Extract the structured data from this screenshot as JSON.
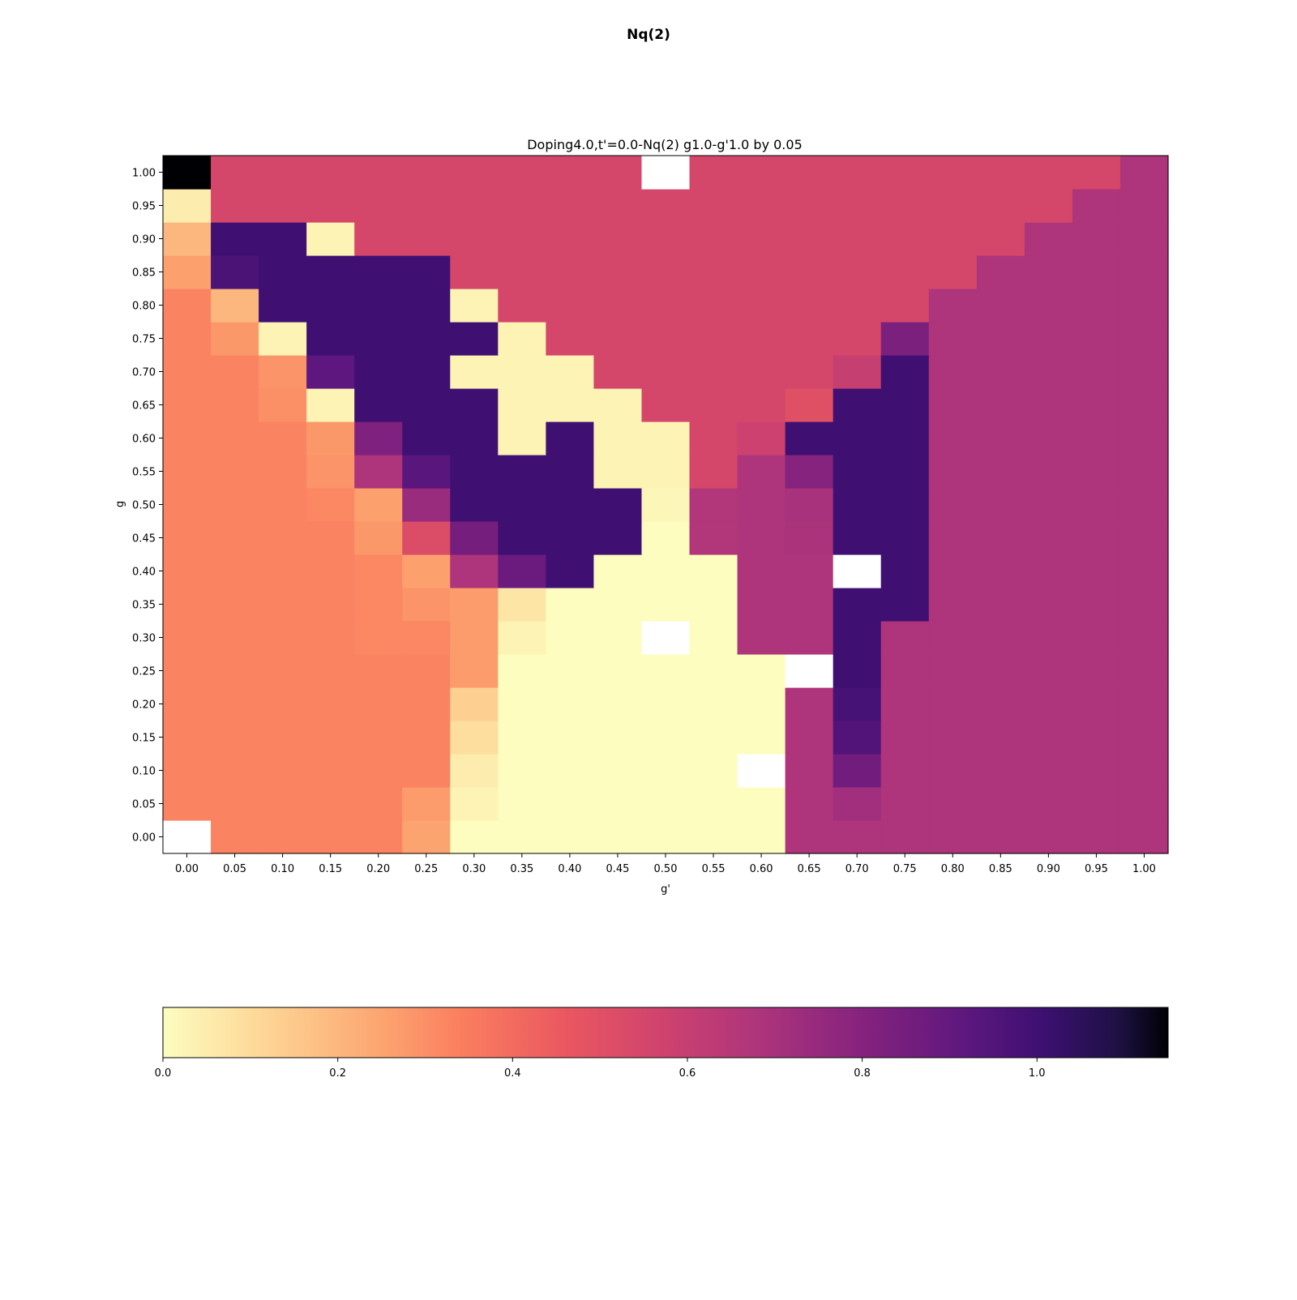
{
  "suptitle": "Nq(2)",
  "chart_data": {
    "type": "heatmap",
    "title": "Doping4.0,t'=0.0-Nq(2)  g1.0-g'1.0 by 0.05",
    "xlabel": "g'",
    "ylabel": "g",
    "x_ticks": [
      "0.00",
      "0.05",
      "0.10",
      "0.15",
      "0.20",
      "0.25",
      "0.30",
      "0.35",
      "0.40",
      "0.45",
      "0.50",
      "0.55",
      "0.60",
      "0.65",
      "0.70",
      "0.75",
      "0.80",
      "0.85",
      "0.90",
      "0.95",
      "1.00"
    ],
    "y_ticks": [
      "0.00",
      "0.05",
      "0.10",
      "0.15",
      "0.20",
      "0.25",
      "0.30",
      "0.35",
      "0.40",
      "0.45",
      "0.50",
      "0.55",
      "0.60",
      "0.65",
      "0.70",
      "0.75",
      "0.80",
      "0.85",
      "0.90",
      "0.95",
      "1.00"
    ],
    "y_order": "rows listed from g=0.00 (bottom) to g=1.00 (top); null = missing (white)",
    "colormap": "magma_r",
    "vmin": 0.0,
    "vmax": 1.15,
    "colorbar": {
      "orientation": "horizontal",
      "ticks": [
        "0.0",
        "0.2",
        "0.4",
        "0.6",
        "0.8",
        "1.0"
      ],
      "tick_values": [
        0.0,
        0.2,
        0.4,
        0.6,
        0.8,
        1.0
      ],
      "range": [
        0.0,
        1.15
      ]
    },
    "grid": false,
    "values": [
      [
        null,
        0.33,
        0.33,
        0.33,
        0.33,
        0.25,
        0.0,
        0.0,
        0.0,
        0.0,
        0.0,
        0.0,
        0.0,
        0.68,
        0.68,
        0.68,
        0.68,
        0.68,
        0.68,
        0.68,
        0.68
      ],
      [
        0.33,
        0.33,
        0.33,
        0.33,
        0.33,
        0.27,
        0.03,
        0.0,
        0.0,
        0.0,
        0.0,
        0.0,
        0.0,
        0.68,
        0.72,
        0.68,
        0.68,
        0.68,
        0.68,
        0.68,
        0.68
      ],
      [
        0.33,
        0.33,
        0.33,
        0.33,
        0.33,
        0.33,
        0.05,
        0.0,
        0.0,
        0.0,
        0.0,
        0.0,
        null,
        0.68,
        0.86,
        0.68,
        0.68,
        0.68,
        0.68,
        0.68,
        0.68
      ],
      [
        0.33,
        0.33,
        0.33,
        0.33,
        0.33,
        0.33,
        0.09,
        0.0,
        0.0,
        0.0,
        0.0,
        0.0,
        0.0,
        0.68,
        0.95,
        0.68,
        0.68,
        0.68,
        0.68,
        0.68,
        0.68
      ],
      [
        0.33,
        0.33,
        0.33,
        0.33,
        0.33,
        0.33,
        0.13,
        0.0,
        0.0,
        0.0,
        0.0,
        0.0,
        0.0,
        0.68,
        0.98,
        0.68,
        0.68,
        0.68,
        0.68,
        0.68,
        0.68
      ],
      [
        0.33,
        0.33,
        0.33,
        0.33,
        0.33,
        0.33,
        0.27,
        0.0,
        0.0,
        0.0,
        0.0,
        0.0,
        0.0,
        null,
        1.0,
        0.68,
        0.68,
        0.68,
        0.68,
        0.68,
        0.68
      ],
      [
        0.33,
        0.33,
        0.33,
        0.33,
        0.32,
        0.32,
        0.27,
        0.03,
        0.0,
        0.0,
        null,
        0.0,
        0.68,
        0.68,
        1.0,
        0.68,
        0.68,
        0.68,
        0.68,
        0.68,
        0.68
      ],
      [
        0.33,
        0.33,
        0.33,
        0.33,
        0.32,
        0.29,
        0.27,
        0.07,
        0.0,
        0.0,
        0.0,
        0.0,
        0.68,
        0.68,
        1.0,
        1.0,
        0.68,
        0.68,
        0.68,
        0.68,
        0.68
      ],
      [
        0.33,
        0.33,
        0.33,
        0.33,
        0.32,
        0.26,
        0.68,
        0.88,
        1.0,
        0.0,
        0.0,
        0.0,
        0.68,
        0.68,
        null,
        1.0,
        0.68,
        0.68,
        0.68,
        0.68,
        0.68
      ],
      [
        0.33,
        0.33,
        0.33,
        0.33,
        0.28,
        0.52,
        0.85,
        1.0,
        1.0,
        1.0,
        0.0,
        0.67,
        0.68,
        0.69,
        1.0,
        1.0,
        0.68,
        0.68,
        0.68,
        0.68,
        0.68
      ],
      [
        0.33,
        0.33,
        0.33,
        0.32,
        0.26,
        0.74,
        1.0,
        1.0,
        1.0,
        1.0,
        0.02,
        0.67,
        0.68,
        0.7,
        1.0,
        1.0,
        0.68,
        0.68,
        0.68,
        0.68,
        0.68
      ],
      [
        0.33,
        0.33,
        0.33,
        0.29,
        0.68,
        0.93,
        1.0,
        1.0,
        1.0,
        0.03,
        0.03,
        0.55,
        0.68,
        0.8,
        1.0,
        1.0,
        0.68,
        0.68,
        0.68,
        0.68,
        0.68
      ],
      [
        0.33,
        0.33,
        0.33,
        0.28,
        0.82,
        1.0,
        1.0,
        0.03,
        1.0,
        0.03,
        0.03,
        0.55,
        0.58,
        1.0,
        1.0,
        1.0,
        0.68,
        0.68,
        0.68,
        0.68,
        0.68
      ],
      [
        0.33,
        0.33,
        0.3,
        0.03,
        1.0,
        1.0,
        1.0,
        0.03,
        0.03,
        0.03,
        0.55,
        0.55,
        0.55,
        0.5,
        1.0,
        1.0,
        0.68,
        0.68,
        0.68,
        0.68,
        0.68
      ],
      [
        0.33,
        0.33,
        0.29,
        0.92,
        1.0,
        1.0,
        0.03,
        0.03,
        0.03,
        0.55,
        0.55,
        0.55,
        0.55,
        0.55,
        0.6,
        1.0,
        0.68,
        0.68,
        0.68,
        0.68,
        0.68
      ],
      [
        0.33,
        0.28,
        0.03,
        1.0,
        1.0,
        1.0,
        1.0,
        0.03,
        0.55,
        0.55,
        0.55,
        0.55,
        0.55,
        0.55,
        0.55,
        0.83,
        0.68,
        0.68,
        0.68,
        0.68,
        0.68
      ],
      [
        0.33,
        0.2,
        1.0,
        1.0,
        1.0,
        1.0,
        0.03,
        0.55,
        0.55,
        0.55,
        0.55,
        0.55,
        0.55,
        0.55,
        0.55,
        0.55,
        0.68,
        0.68,
        0.68,
        0.68,
        0.68
      ],
      [
        0.26,
        0.97,
        1.0,
        1.0,
        1.0,
        1.0,
        0.55,
        0.55,
        0.55,
        0.55,
        0.55,
        0.55,
        0.55,
        0.55,
        0.55,
        0.55,
        0.55,
        0.68,
        0.68,
        0.68,
        0.68
      ],
      [
        0.2,
        1.0,
        1.0,
        0.03,
        0.55,
        0.55,
        0.55,
        0.55,
        0.55,
        0.55,
        0.55,
        0.55,
        0.55,
        0.55,
        0.55,
        0.55,
        0.55,
        0.55,
        0.68,
        0.68,
        0.68
      ],
      [
        0.05,
        0.55,
        0.55,
        0.55,
        0.55,
        0.55,
        0.55,
        0.55,
        0.55,
        0.55,
        0.55,
        0.55,
        0.55,
        0.55,
        0.55,
        0.55,
        0.55,
        0.55,
        0.55,
        0.68,
        0.68
      ],
      [
        1.15,
        0.55,
        0.55,
        0.55,
        0.55,
        0.55,
        0.55,
        0.55,
        0.55,
        0.55,
        null,
        0.55,
        0.55,
        0.55,
        0.55,
        0.55,
        0.55,
        0.55,
        0.55,
        0.55,
        0.68
      ]
    ]
  }
}
